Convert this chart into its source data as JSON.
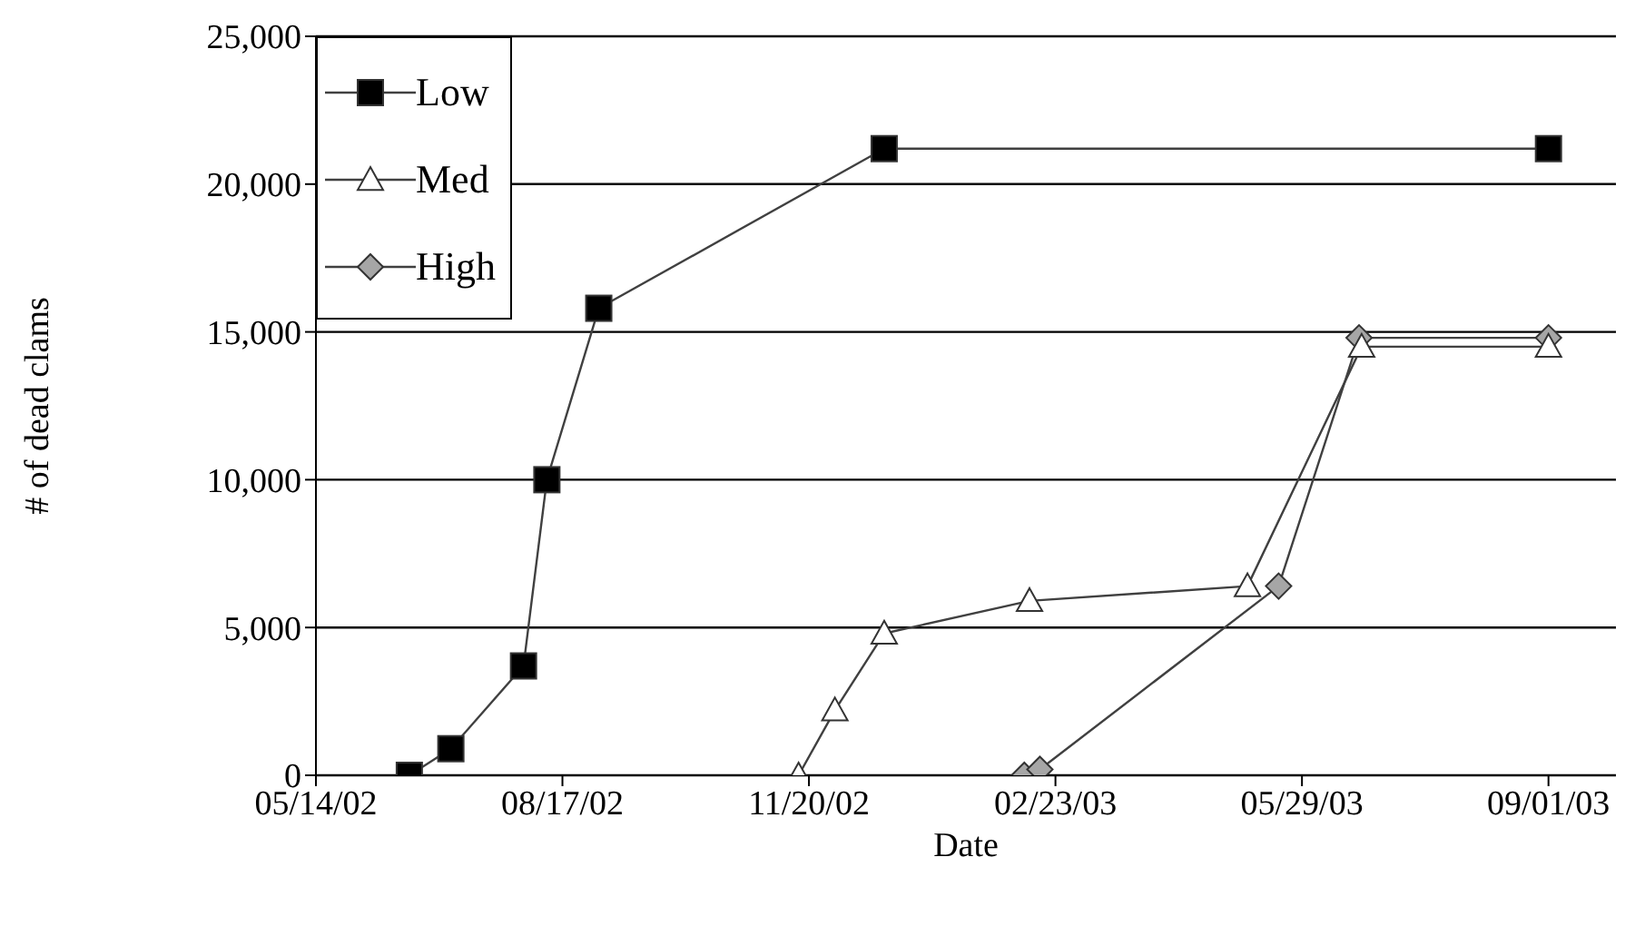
{
  "chart_data": {
    "type": "line",
    "xlabel": "Date",
    "ylabel": "# of dead clams",
    "xlim": [
      "2002-05-14",
      "2003-09-27"
    ],
    "xticks": [
      {
        "value": "2002-05-14",
        "label": "05/14/02"
      },
      {
        "value": "2002-08-17",
        "label": "08/17/02"
      },
      {
        "value": "2002-11-20",
        "label": "11/20/02"
      },
      {
        "value": "2003-02-23",
        "label": "02/23/03"
      },
      {
        "value": "2003-05-29",
        "label": "05/29/03"
      },
      {
        "value": "2003-09-01",
        "label": "09/01/03"
      }
    ],
    "ylim": [
      0,
      25000
    ],
    "yticks": [
      {
        "value": 0,
        "label": "0"
      },
      {
        "value": 5000,
        "label": "5,000"
      },
      {
        "value": 10000,
        "label": "10,000"
      },
      {
        "value": 15000,
        "label": "15,000"
      },
      {
        "value": 20000,
        "label": "20,000"
      },
      {
        "value": 25000,
        "label": "25,000"
      }
    ],
    "grid": "y",
    "legend": "top left",
    "series": [
      {
        "name": "Low",
        "color": "#000000",
        "marker": "square",
        "x": [
          "2002-06-19",
          "2002-07-05",
          "2002-08-02",
          "2002-08-11",
          "2002-08-31",
          "2002-12-19",
          "2003-09-01"
        ],
        "values": [
          0,
          900,
          3700,
          10000,
          15800,
          21200,
          21200
        ]
      },
      {
        "name": "Med",
        "color": "#ffffff",
        "marker": "triangle",
        "x": [
          "2002-11-16",
          "2002-11-30",
          "2002-12-19",
          "2003-02-13",
          "2003-05-08",
          "2003-06-21",
          "2003-09-01"
        ],
        "values": [
          0,
          2200,
          4800,
          5900,
          6400,
          14500,
          14500
        ]
      },
      {
        "name": "High",
        "color": "#a6a6a6",
        "marker": "diamond",
        "x": [
          "2003-02-11",
          "2003-02-17",
          "2003-05-20",
          "2003-06-20",
          "2003-09-01"
        ],
        "values": [
          0,
          200,
          6400,
          14800,
          14800
        ]
      }
    ]
  }
}
